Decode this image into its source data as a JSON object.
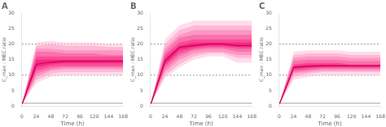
{
  "chart_data": [
    {
      "type": "line",
      "title": "A",
      "xlabel": "Time (h)",
      "ylabel": "C_max : MEC ratio",
      "x": [
        0,
        1,
        24,
        48,
        72,
        96,
        120,
        144,
        168
      ],
      "xlim": [
        0,
        168
      ],
      "xticks": [
        0,
        24,
        48,
        72,
        96,
        120,
        144,
        168
      ],
      "ylim": [
        0,
        30
      ],
      "yticks": [
        0,
        5,
        10,
        15,
        20,
        25,
        30
      ],
      "grid": false,
      "series": [
        {
          "color": "#cc0055",
          "values": [
            1.0,
            1.0,
            13.5,
            14.2,
            14.5,
            14.5,
            14.5,
            14.5,
            14.5
          ]
        }
      ],
      "bands": [
        {
          "color": "#ffbfd9",
          "lo": [
            0.8,
            0.8,
            7.5,
            9.5,
            10.0,
            10.0,
            10.0,
            10.0,
            10.0
          ],
          "hi": [
            1.2,
            1.2,
            20.5,
            21.0,
            20.5,
            20.5,
            20.5,
            20.0,
            20.0
          ]
        },
        {
          "color": "#fc9cc4",
          "lo": [
            0.8,
            0.8,
            8.5,
            10.5,
            11.0,
            11.0,
            11.0,
            11.0,
            11.0
          ],
          "hi": [
            1.2,
            1.2,
            19.5,
            20.0,
            19.5,
            19.5,
            19.5,
            19.0,
            19.0
          ]
        },
        {
          "color": "#fa78b0",
          "lo": [
            0.8,
            0.8,
            9.5,
            11.5,
            12.0,
            12.0,
            12.0,
            12.0,
            12.0
          ],
          "hi": [
            1.2,
            1.2,
            18.5,
            18.5,
            18.0,
            18.0,
            18.0,
            18.0,
            18.0
          ]
        },
        {
          "color": "#f7549c",
          "lo": [
            0.8,
            0.8,
            10.5,
            12.0,
            12.5,
            12.5,
            12.5,
            12.5,
            12.5
          ],
          "hi": [
            1.2,
            1.2,
            17.5,
            17.5,
            17.0,
            17.0,
            17.0,
            16.5,
            16.5
          ]
        },
        {
          "color": "#f53087",
          "lo": [
            0.8,
            0.8,
            11.5,
            12.8,
            13.0,
            13.0,
            13.0,
            13.0,
            13.0
          ],
          "hi": [
            1.2,
            1.2,
            16.0,
            16.0,
            16.0,
            16.0,
            16.0,
            16.0,
            16.0
          ]
        },
        {
          "color": "#f20d73",
          "lo": [
            0.8,
            0.8,
            12.5,
            13.5,
            13.8,
            13.8,
            13.8,
            13.8,
            13.8
          ],
          "hi": [
            1.2,
            1.2,
            15.0,
            15.0,
            15.0,
            15.0,
            15.0,
            15.0,
            15.0
          ]
        }
      ],
      "hlines": [
        {
          "value": 10,
          "color": "#999999",
          "line_style": "dotted"
        },
        {
          "value": 20,
          "color": "#999999",
          "line_style": "dotted"
        },
        {
          "value": 1,
          "color": "#aaaaaa",
          "line_style": "solid"
        }
      ]
    },
    {
      "type": "line",
      "title": "B",
      "xlabel": "Time (h)",
      "ylabel": "C_max : MEC ratio",
      "x": [
        0,
        1,
        24,
        48,
        72,
        96,
        120,
        144,
        168
      ],
      "xlim": [
        0,
        168
      ],
      "xticks": [
        0,
        24,
        48,
        72,
        96,
        120,
        144,
        168
      ],
      "ylim": [
        0,
        30
      ],
      "yticks": [
        0,
        5,
        10,
        15,
        20,
        25,
        30
      ],
      "grid": false,
      "series": [
        {
          "color": "#cc0055",
          "values": [
            1.0,
            1.0,
            14.5,
            19.0,
            19.5,
            20.0,
            20.0,
            19.5,
            19.5
          ]
        }
      ],
      "bands": [
        {
          "color": "#ffbfd9",
          "lo": [
            0.8,
            0.8,
            9.0,
            12.5,
            15.0,
            16.0,
            16.0,
            14.0,
            14.0
          ],
          "hi": [
            1.2,
            1.2,
            21.5,
            26.0,
            27.5,
            27.5,
            27.5,
            27.5,
            27.5
          ]
        },
        {
          "color": "#fc9cc4",
          "lo": [
            0.8,
            0.8,
            10.0,
            13.5,
            16.0,
            17.0,
            17.0,
            15.5,
            15.5
          ],
          "hi": [
            1.2,
            1.2,
            20.0,
            24.5,
            26.0,
            26.0,
            26.0,
            26.0,
            26.0
          ]
        },
        {
          "color": "#fa78b0",
          "lo": [
            0.8,
            0.8,
            11.0,
            15.0,
            17.0,
            17.5,
            17.5,
            16.5,
            16.5
          ],
          "hi": [
            1.2,
            1.2,
            18.5,
            23.0,
            24.5,
            24.5,
            24.5,
            24.5,
            24.5
          ]
        },
        {
          "color": "#f7549c",
          "lo": [
            0.8,
            0.8,
            12.0,
            16.0,
            18.0,
            18.5,
            18.5,
            17.5,
            17.5
          ],
          "hi": [
            1.2,
            1.2,
            17.5,
            22.0,
            23.0,
            23.0,
            23.0,
            23.0,
            23.0
          ]
        },
        {
          "color": "#f53087",
          "lo": [
            0.8,
            0.8,
            13.0,
            17.0,
            18.5,
            19.0,
            19.0,
            18.5,
            18.5
          ],
          "hi": [
            1.2,
            1.2,
            16.5,
            20.5,
            21.5,
            21.5,
            21.5,
            21.5,
            21.5
          ]
        },
        {
          "color": "#f20d73",
          "lo": [
            0.8,
            0.8,
            13.5,
            18.0,
            19.0,
            19.5,
            19.5,
            19.0,
            19.0
          ],
          "hi": [
            1.2,
            1.2,
            15.5,
            19.5,
            20.5,
            20.5,
            20.5,
            20.5,
            20.5
          ]
        }
      ],
      "hlines": [
        {
          "value": 10,
          "color": "#999999",
          "line_style": "dotted"
        },
        {
          "value": 20,
          "color": "#999999",
          "line_style": "dotted"
        },
        {
          "value": 1,
          "color": "#aaaaaa",
          "line_style": "solid"
        }
      ]
    },
    {
      "type": "line",
      "title": "C",
      "xlabel": "Time (h)",
      "ylabel": "C_max : MEC ratio",
      "x": [
        0,
        1,
        24,
        48,
        72,
        96,
        120,
        144,
        168
      ],
      "xlim": [
        0,
        168
      ],
      "xticks": [
        0,
        24,
        48,
        72,
        96,
        120,
        144,
        168
      ],
      "ylim": [
        0,
        30
      ],
      "yticks": [
        0,
        5,
        10,
        15,
        20,
        25,
        30
      ],
      "grid": false,
      "series": [
        {
          "color": "#cc0055",
          "values": [
            1.0,
            1.0,
            12.5,
            12.8,
            13.0,
            13.0,
            13.0,
            13.0,
            13.0
          ]
        }
      ],
      "bands": [
        {
          "color": "#ffbfd9",
          "lo": [
            0.8,
            0.8,
            8.5,
            9.5,
            10.0,
            10.0,
            10.0,
            10.0,
            10.0
          ],
          "hi": [
            1.2,
            1.2,
            17.5,
            18.0,
            18.0,
            18.0,
            17.5,
            17.5,
            17.5
          ]
        },
        {
          "color": "#fc9cc4",
          "lo": [
            0.8,
            0.8,
            9.5,
            10.5,
            11.0,
            11.0,
            11.0,
            11.0,
            11.0
          ],
          "hi": [
            1.2,
            1.2,
            16.5,
            17.0,
            17.0,
            17.0,
            16.5,
            16.5,
            16.5
          ]
        },
        {
          "color": "#fa78b0",
          "lo": [
            0.8,
            0.8,
            10.5,
            11.0,
            11.5,
            11.5,
            11.5,
            11.5,
            11.5
          ],
          "hi": [
            1.2,
            1.2,
            15.5,
            16.0,
            16.0,
            16.0,
            15.5,
            15.5,
            15.5
          ]
        },
        {
          "color": "#f7549c",
          "lo": [
            0.8,
            0.8,
            11.0,
            11.5,
            12.0,
            12.0,
            12.0,
            12.0,
            12.0
          ],
          "hi": [
            1.2,
            1.2,
            14.5,
            15.0,
            15.0,
            15.0,
            14.5,
            14.5,
            14.5
          ]
        },
        {
          "color": "#f53087",
          "lo": [
            0.8,
            0.8,
            11.5,
            12.0,
            12.3,
            12.3,
            12.3,
            12.3,
            12.3
          ],
          "hi": [
            1.2,
            1.2,
            13.5,
            14.0,
            14.0,
            14.0,
            13.5,
            13.5,
            13.5
          ]
        },
        {
          "color": "#f20d73",
          "lo": [
            0.8,
            0.8,
            12.0,
            12.5,
            12.7,
            12.7,
            12.7,
            12.7,
            12.7
          ],
          "hi": [
            1.2,
            1.2,
            13.0,
            13.5,
            13.5,
            13.5,
            13.2,
            13.2,
            13.2
          ]
        }
      ],
      "hlines": [
        {
          "value": 10,
          "color": "#999999",
          "line_style": "dotted"
        },
        {
          "value": 20,
          "color": "#999999",
          "line_style": "dotted"
        },
        {
          "value": 1,
          "color": "#aaaaaa",
          "line_style": "solid"
        }
      ]
    }
  ]
}
